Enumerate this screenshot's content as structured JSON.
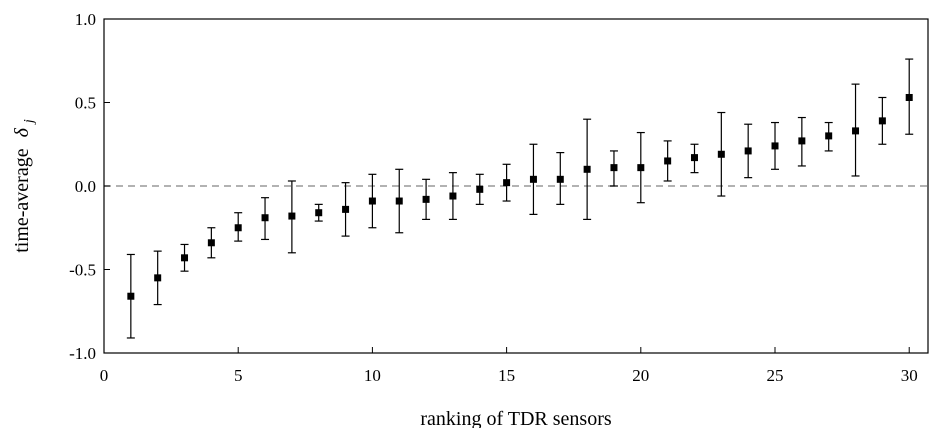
{
  "chart_data": {
    "type": "scatter",
    "xlabel": "ranking of TDR sensors",
    "ylabel_text": "time-average",
    "ylabel_symbol": "δ",
    "ylabel_subscript": "j",
    "xlim": [
      0,
      30.7
    ],
    "ylim": [
      -1.0,
      1.0
    ],
    "xticks": [
      0,
      5,
      10,
      15,
      20,
      25,
      30
    ],
    "xtick_labels": [
      "0",
      "5",
      "10",
      "15",
      "20",
      "25",
      "30"
    ],
    "yticks": [
      1.0,
      0.5,
      0.0,
      -0.5,
      -1.0
    ],
    "ytick_labels": [
      "1.0",
      "0.5",
      "0.0",
      "-0.5",
      "-1.0"
    ],
    "reference_line": {
      "y": 0.0,
      "style": "dashed",
      "color": "#999999"
    },
    "marker_color": "#000000",
    "grid": false,
    "points": [
      {
        "x": 1,
        "y": -0.66,
        "lo": -0.91,
        "hi": -0.41
      },
      {
        "x": 2,
        "y": -0.55,
        "lo": -0.71,
        "hi": -0.39
      },
      {
        "x": 3,
        "y": -0.43,
        "lo": -0.51,
        "hi": -0.35
      },
      {
        "x": 4,
        "y": -0.34,
        "lo": -0.43,
        "hi": -0.25
      },
      {
        "x": 5,
        "y": -0.25,
        "lo": -0.33,
        "hi": -0.16
      },
      {
        "x": 6,
        "y": -0.19,
        "lo": -0.32,
        "hi": -0.07
      },
      {
        "x": 7,
        "y": -0.18,
        "lo": -0.4,
        "hi": 0.03
      },
      {
        "x": 8,
        "y": -0.16,
        "lo": -0.21,
        "hi": -0.11
      },
      {
        "x": 9,
        "y": -0.14,
        "lo": -0.3,
        "hi": 0.02
      },
      {
        "x": 10,
        "y": -0.09,
        "lo": -0.25,
        "hi": 0.07
      },
      {
        "x": 11,
        "y": -0.09,
        "lo": -0.28,
        "hi": 0.1
      },
      {
        "x": 12,
        "y": -0.08,
        "lo": -0.2,
        "hi": 0.04
      },
      {
        "x": 13,
        "y": -0.06,
        "lo": -0.2,
        "hi": 0.08
      },
      {
        "x": 14,
        "y": -0.02,
        "lo": -0.11,
        "hi": 0.07
      },
      {
        "x": 15,
        "y": 0.02,
        "lo": -0.09,
        "hi": 0.13
      },
      {
        "x": 16,
        "y": 0.04,
        "lo": -0.17,
        "hi": 0.25
      },
      {
        "x": 17,
        "y": 0.04,
        "lo": -0.11,
        "hi": 0.2
      },
      {
        "x": 18,
        "y": 0.1,
        "lo": -0.2,
        "hi": 0.4
      },
      {
        "x": 19,
        "y": 0.11,
        "lo": 0.0,
        "hi": 0.21
      },
      {
        "x": 20,
        "y": 0.11,
        "lo": -0.1,
        "hi": 0.32
      },
      {
        "x": 21,
        "y": 0.15,
        "lo": 0.03,
        "hi": 0.27
      },
      {
        "x": 22,
        "y": 0.17,
        "lo": 0.08,
        "hi": 0.25
      },
      {
        "x": 23,
        "y": 0.19,
        "lo": -0.06,
        "hi": 0.44
      },
      {
        "x": 24,
        "y": 0.21,
        "lo": 0.05,
        "hi": 0.37
      },
      {
        "x": 25,
        "y": 0.24,
        "lo": 0.1,
        "hi": 0.38
      },
      {
        "x": 26,
        "y": 0.27,
        "lo": 0.12,
        "hi": 0.41
      },
      {
        "x": 27,
        "y": 0.3,
        "lo": 0.21,
        "hi": 0.38
      },
      {
        "x": 28,
        "y": 0.33,
        "lo": 0.06,
        "hi": 0.61
      },
      {
        "x": 29,
        "y": 0.39,
        "lo": 0.25,
        "hi": 0.53
      },
      {
        "x": 30,
        "y": 0.53,
        "lo": 0.31,
        "hi": 0.76
      }
    ]
  }
}
